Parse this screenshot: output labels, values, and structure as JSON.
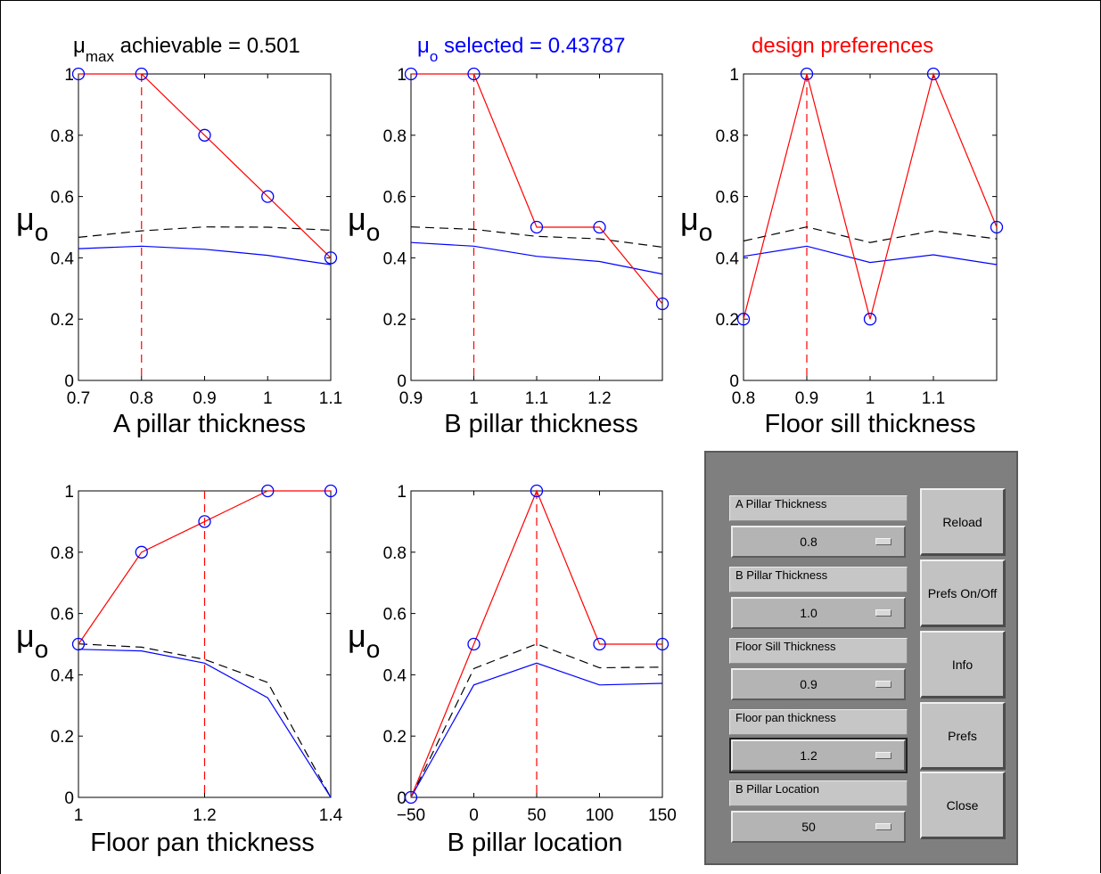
{
  "header": {
    "title1_mu": "μ",
    "title1_sub": "max",
    "title1_text": " achievable = 0.501",
    "title2_mu": "μ",
    "title2_sub": "o",
    "title2_text": " selected = 0.43787",
    "title3_text": "design preferences"
  },
  "ylabel": {
    "mu": "μ",
    "sub": "o"
  },
  "colors": {
    "preference": "#ff0000",
    "marker": "#0000ff",
    "selected": "#0000ff",
    "achievable": "#000000",
    "current": "#ff0000"
  },
  "chart_data": [
    {
      "type": "line",
      "xlabel": "A pillar thickness",
      "xlim": [
        0.7,
        1.1
      ],
      "ylim": [
        0,
        1
      ],
      "xticks": [
        0.7,
        0.8,
        0.9,
        1.0,
        1.1
      ],
      "xtick_labels": [
        "0.7",
        "0.8",
        "0.9",
        "1",
        "1.1"
      ],
      "yticks": [
        0,
        0.2,
        0.4,
        0.6,
        0.8,
        1
      ],
      "ytick_labels": [
        "0",
        "0.2",
        "0.4",
        "0.6",
        "0.8",
        "1"
      ],
      "current_x": 0.8,
      "preferences": {
        "x": [
          0.7,
          0.8,
          0.9,
          1.0,
          1.1
        ],
        "y": [
          1,
          1,
          0.8,
          0.6,
          0.4
        ]
      },
      "achievable": {
        "x": [
          0.7,
          0.8,
          0.9,
          1.0,
          1.1
        ],
        "y": [
          0.467,
          0.488,
          0.501,
          0.5,
          0.49
        ]
      },
      "selected": {
        "x": [
          0.7,
          0.8,
          0.9,
          1.0,
          1.1
        ],
        "y": [
          0.43,
          0.438,
          0.428,
          0.408,
          0.378
        ]
      }
    },
    {
      "type": "line",
      "xlabel": "B pillar thickness",
      "xlim": [
        0.9,
        1.3
      ],
      "ylim": [
        0,
        1
      ],
      "xticks": [
        0.9,
        1.0,
        1.1,
        1.2
      ],
      "xtick_labels": [
        "0.9",
        "1",
        "1.1",
        "1.2"
      ],
      "yticks": [
        0,
        0.2,
        0.4,
        0.6,
        0.8,
        1
      ],
      "ytick_labels": [
        "0",
        "0.2",
        "0.4",
        "0.6",
        "0.8",
        "1"
      ],
      "current_x": 1.0,
      "preferences": {
        "x": [
          0.9,
          1.0,
          1.1,
          1.2,
          1.3
        ],
        "y": [
          1,
          1,
          0.5,
          0.5,
          0.25
        ]
      },
      "achievable": {
        "x": [
          0.9,
          1.0,
          1.1,
          1.2,
          1.3
        ],
        "y": [
          0.501,
          0.493,
          0.47,
          0.462,
          0.435
        ]
      },
      "selected": {
        "x": [
          0.9,
          1.0,
          1.1,
          1.2,
          1.3
        ],
        "y": [
          0.45,
          0.438,
          0.405,
          0.388,
          0.347
        ]
      }
    },
    {
      "type": "line",
      "xlabel": "Floor sill thickness",
      "xlim": [
        0.8,
        1.2
      ],
      "ylim": [
        0,
        1
      ],
      "xticks": [
        0.8,
        0.9,
        1.0,
        1.1
      ],
      "xtick_labels": [
        "0.8",
        "0.9",
        "1",
        "1.1"
      ],
      "yticks": [
        0,
        0.2,
        0.4,
        0.6,
        0.8,
        1
      ],
      "ytick_labels": [
        "0",
        "0.2",
        "0.4",
        "0.6",
        "0.8",
        "1"
      ],
      "current_x": 0.9,
      "preferences": {
        "x": [
          0.8,
          0.9,
          1.0,
          1.1,
          1.2
        ],
        "y": [
          0.2,
          1,
          0.2,
          1,
          0.5
        ]
      },
      "achievable": {
        "x": [
          0.8,
          0.9,
          1.0,
          1.1,
          1.2
        ],
        "y": [
          0.455,
          0.501,
          0.45,
          0.488,
          0.462
        ]
      },
      "selected": {
        "x": [
          0.8,
          0.9,
          1.0,
          1.1,
          1.2
        ],
        "y": [
          0.405,
          0.438,
          0.385,
          0.41,
          0.378
        ]
      }
    },
    {
      "type": "line",
      "xlabel": "Floor pan thickness",
      "xlim": [
        1.0,
        1.4
      ],
      "ylim": [
        0,
        1
      ],
      "xticks": [
        1.0,
        1.2,
        1.4
      ],
      "xtick_labels": [
        "1",
        "1.2",
        "1.4"
      ],
      "yticks": [
        0,
        0.2,
        0.4,
        0.6,
        0.8,
        1
      ],
      "ytick_labels": [
        "0",
        "0.2",
        "0.4",
        "0.6",
        "0.8",
        "1"
      ],
      "current_x": 1.2,
      "preferences": {
        "x": [
          1.0,
          1.1,
          1.2,
          1.3,
          1.4
        ],
        "y": [
          0.5,
          0.8,
          0.9,
          1,
          1
        ]
      },
      "achievable": {
        "x": [
          1.0,
          1.1,
          1.2,
          1.3,
          1.4
        ],
        "y": [
          0.501,
          0.49,
          0.45,
          0.375,
          0.0
        ]
      },
      "selected": {
        "x": [
          1.0,
          1.1,
          1.2,
          1.3,
          1.4
        ],
        "y": [
          0.483,
          0.478,
          0.438,
          0.325,
          0.0
        ]
      }
    },
    {
      "type": "line",
      "xlabel": "B pillar location",
      "xlim": [
        -50,
        150
      ],
      "ylim": [
        0,
        1
      ],
      "xticks": [
        -50,
        0,
        50,
        100,
        150
      ],
      "xtick_labels": [
        "−50",
        "0",
        "50",
        "100",
        "150"
      ],
      "yticks": [
        0,
        0.2,
        0.4,
        0.6,
        0.8,
        1
      ],
      "ytick_labels": [
        "0",
        "0.2",
        "0.4",
        "0.6",
        "0.8",
        "1"
      ],
      "current_x": 50,
      "preferences": {
        "x": [
          -50,
          0,
          50,
          100,
          150
        ],
        "y": [
          0,
          0.5,
          1,
          0.5,
          0.5
        ]
      },
      "achievable": {
        "x": [
          -50,
          0,
          50,
          100,
          150
        ],
        "y": [
          0.0,
          0.42,
          0.501,
          0.423,
          0.425
        ]
      },
      "selected": {
        "x": [
          -50,
          0,
          50,
          100,
          150
        ],
        "y": [
          0.0,
          0.367,
          0.438,
          0.367,
          0.372
        ]
      }
    }
  ],
  "controls": {
    "fields": [
      {
        "label": "A Pillar Thickness",
        "value": "0.8"
      },
      {
        "label": "B Pillar Thickness",
        "value": "1.0"
      },
      {
        "label": "Floor Sill Thickness",
        "value": "0.9"
      },
      {
        "label": "Floor pan thickness",
        "value": "1.2"
      },
      {
        "label": "B Pillar Location",
        "value": "50"
      }
    ],
    "buttons": {
      "reload": "Reload",
      "prefs_toggle": "Prefs On/Off",
      "info": "Info",
      "prefs": "Prefs",
      "close": "Close"
    }
  }
}
